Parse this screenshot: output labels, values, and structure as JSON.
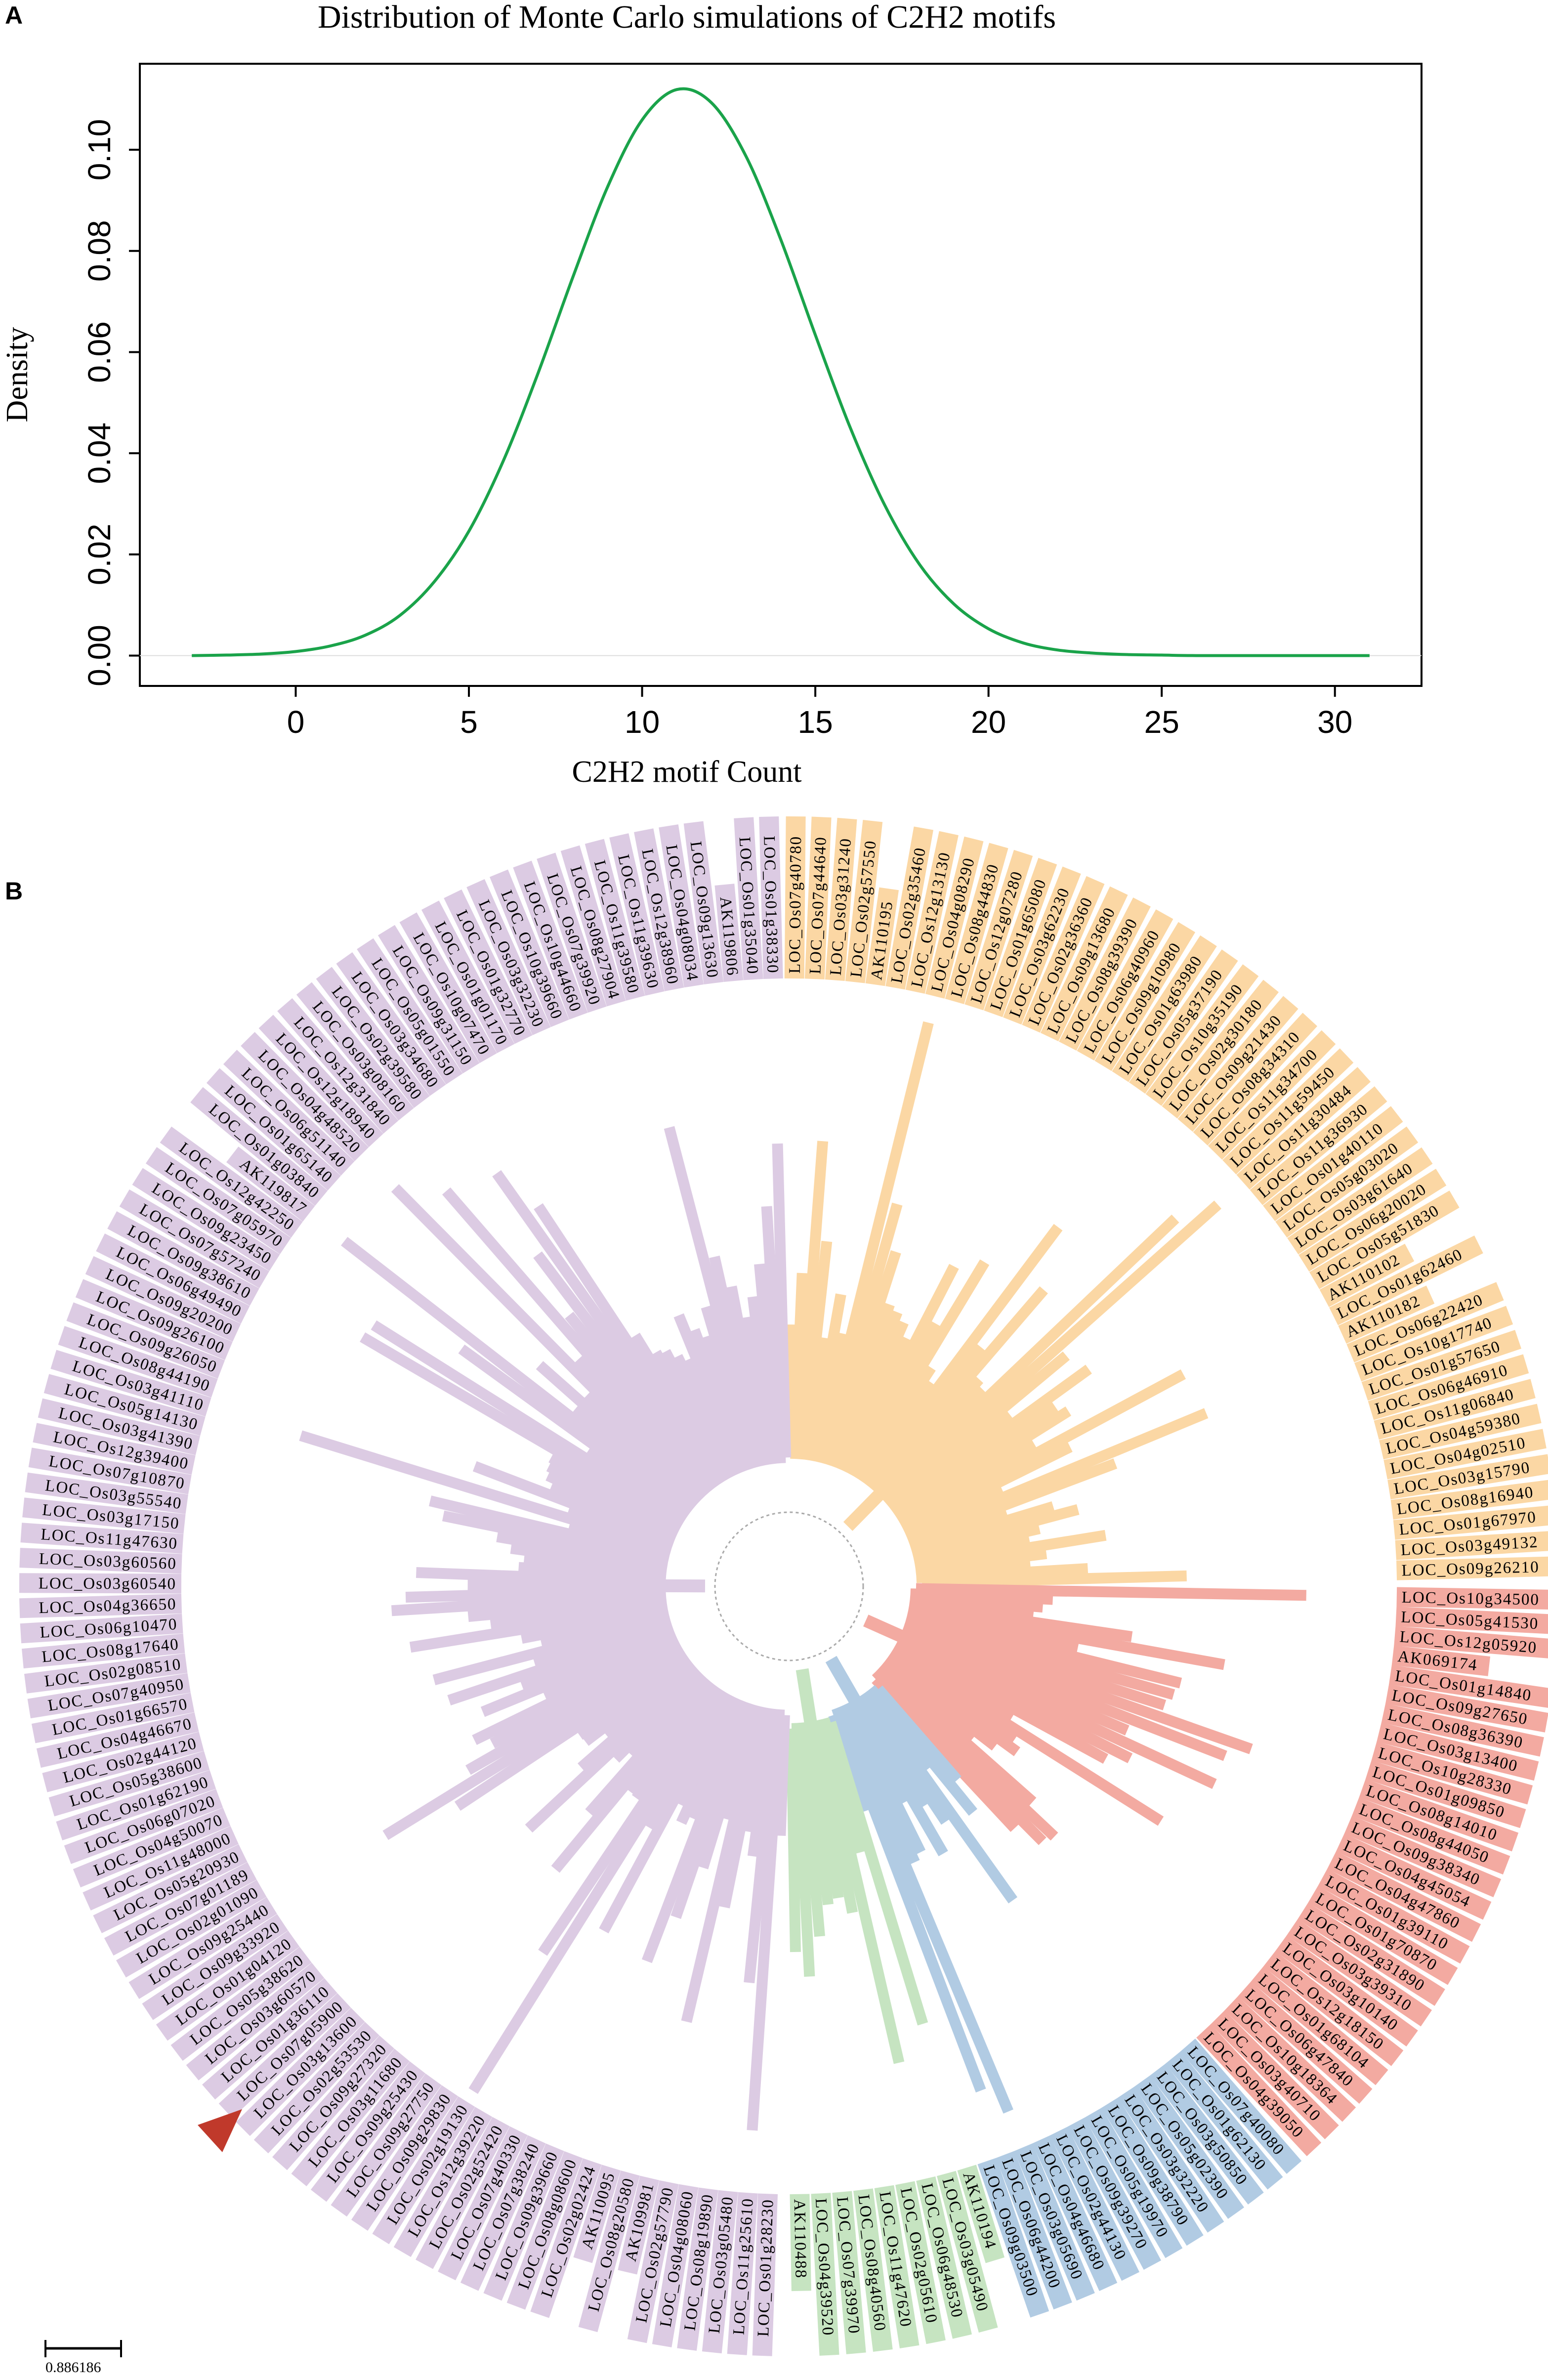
{
  "panels": {
    "a_letter": "A",
    "b_letter": "B"
  },
  "chart_data": {
    "type": "line",
    "title": "Distribution of Monte Carlo simulations of C2H2 motifs",
    "xlabel": "C2H2 motif Count",
    "ylabel": "Density",
    "xlim": [
      -4.5,
      32.5
    ],
    "ylim": [
      -0.006,
      0.117
    ],
    "xticks": [
      "0",
      "5",
      "10",
      "15",
      "20",
      "25",
      "30"
    ],
    "yticks": [
      "0.00",
      "0.02",
      "0.04",
      "0.06",
      "0.08",
      "0.10"
    ],
    "grid": false,
    "color": "#1aa34a",
    "x": [
      -3,
      -2,
      -1,
      0,
      1,
      2,
      3,
      4,
      5,
      6,
      7,
      8,
      9,
      10,
      11,
      12,
      13,
      14,
      15,
      16,
      17,
      18,
      19,
      20,
      21,
      22,
      23,
      24,
      25,
      26,
      28,
      31
    ],
    "y": [
      0.0,
      0.0001,
      0.0003,
      0.0008,
      0.0019,
      0.004,
      0.0079,
      0.0146,
      0.0246,
      0.0386,
      0.0559,
      0.0748,
      0.0926,
      0.1059,
      0.1119,
      0.1093,
      0.0987,
      0.0823,
      0.0634,
      0.0452,
      0.0298,
      0.0181,
      0.0102,
      0.0053,
      0.0025,
      0.0011,
      0.0005,
      0.0002,
      0.0001,
      0.0,
      0.0,
      0.0
    ]
  },
  "tree": {
    "scale_label": "0.886186",
    "clades": [
      {
        "name": "orange",
        "color": "#fbd7a4",
        "leaves": [
          "LOC_Os07g40780",
          "LOC_Os07g44640",
          "LOC_Os03g31240",
          "LOC_Os02g57550",
          "AK110195",
          "LOC_Os02g35460",
          "LOC_Os12g13130",
          "LOC_Os04g08290",
          "LOC_Os08g44830",
          "LOC_Os12g07280",
          "LOC_Os01g65080",
          "LOC_Os03g62230",
          "LOC_Os02g36360",
          "LOC_Os09g13680",
          "LOC_Os08g39390",
          "LOC_Os06g40960",
          "LOC_Os09g10980",
          "LOC_Os01g63980",
          "LOC_Os05g37190",
          "LOC_Os10g35190",
          "LOC_Os02g30180",
          "LOC_Os09g21430",
          "LOC_Os08g34310",
          "LOC_Os11g34700",
          "LOC_Os11g59450",
          "LOC_Os11g30484",
          "LOC_Os11g36930",
          "LOC_Os01g40110",
          "LOC_Os05g03020",
          "LOC_Os03g61640",
          "LOC_Os06g20020",
          "LOC_Os05g51830",
          "AK110102",
          "LOC_Os01g62460",
          "AK110182",
          "LOC_Os06g22420",
          "LOC_Os10g17740",
          "LOC_Os01g57650",
          "LOC_Os06g46910",
          "LOC_Os11g06840",
          "LOC_Os04g59380",
          "LOC_Os04g02510",
          "LOC_Os03g15790",
          "LOC_Os08g16940",
          "LOC_Os01g67970",
          "LOC_Os03g49132",
          "LOC_Os09g26210"
        ]
      },
      {
        "name": "red",
        "color": "#f3aaa1",
        "leaves": [
          "LOC_Os10g34500",
          "LOC_Os05g41530",
          "LOC_Os12g05920",
          "AK069174",
          "LOC_Os01g14840",
          "LOC_Os09g27650",
          "LOC_Os08g36390",
          "LOC_Os03g13400",
          "LOC_Os10g28330",
          "LOC_Os01g09850",
          "LOC_Os08g14010",
          "LOC_Os08g44050",
          "LOC_Os09g38340",
          "LOC_Os04g45054",
          "LOC_Os04g47860",
          "LOC_Os01g39110",
          "LOC_Os01g70870",
          "LOC_Os02g31890",
          "LOC_Os03g39310",
          "LOC_Os03g10140",
          "LOC_Os12g18150",
          "LOC_Os01g68104",
          "LOC_Os06g47840",
          "LOC_Os10g18364",
          "LOC_Os03g40710",
          "LOC_Os04g39050"
        ]
      },
      {
        "name": "blue",
        "color": "#b1cbe3",
        "leaves": [
          "LOC_Os07g40080",
          "LOC_Os01g62130",
          "LOC_Os03g50850",
          "LOC_Os05g02390",
          "LOC_Os03g32220",
          "LOC_Os09g38790",
          "LOC_Os05g19970",
          "LOC_Os09g39270",
          "LOC_Os02g44130",
          "LOC_Os04g46680",
          "LOC_Os03g05690",
          "LOC_Os06g44200",
          "LOC_Os09g03500"
        ]
      },
      {
        "name": "green",
        "color": "#c6e4c1",
        "leaves": [
          "AK110194",
          "LOC_Os03g05490",
          "LOC_Os06g48530",
          "LOC_Os02g05610",
          "LOC_Os11g47620",
          "LOC_Os08g40560",
          "LOC_Os07g39970",
          "LOC_Os04g39520",
          "AK110488"
        ]
      },
      {
        "name": "purple",
        "color": "#dccbe3",
        "leaves": [
          "LOC_Os01g28230",
          "LOC_Os11g25610",
          "LOC_Os03g05480",
          "LOC_Os08g19890",
          "LOC_Os04g08060",
          "LOC_Os02g57790",
          "AK109981",
          "LOC_Os08g20580",
          "AK110095",
          "LOC_Os02g02424",
          "LOC_Os08g08600",
          "LOC_Os09g39660",
          "LOC_Os07g38240",
          "LOC_Os07g40330",
          "LOC_Os02g52420",
          "LOC_Os12g39220",
          "LOC_Os02g19130",
          "LOC_Os09g29830",
          "LOC_Os09g27750",
          "LOC_Os09g25430",
          "LOC_Os03g11680",
          "LOC_Os09g27320",
          "LOC_Os02g53530",
          "LOC_Os03g13600",
          "LOC_Os07g05900",
          "LOC_Os01g36110",
          "LOC_Os03g60570",
          "LOC_Os05g38620",
          "LOC_Os01g04120",
          "LOC_Os09g33920",
          "LOC_Os09g25440",
          "LOC_Os02g01090",
          "LOC_Os07g01189",
          "LOC_Os05g20930",
          "LOC_Os11g48000",
          "LOC_Os04g50070",
          "LOC_Os06g07020",
          "LOC_Os01g62190",
          "LOC_Os05g38600",
          "LOC_Os02g44120",
          "LOC_Os04g46670",
          "LOC_Os01g66570",
          "LOC_Os07g40950",
          "LOC_Os02g08510",
          "LOC_Os08g17640",
          "LOC_Os06g10470",
          "LOC_Os04g36650",
          "LOC_Os03g60540",
          "LOC_Os03g60560",
          "LOC_Os11g47630",
          "LOC_Os03g17150",
          "LOC_Os03g55540",
          "LOC_Os07g10870",
          "LOC_Os12g39400",
          "LOC_Os03g41390",
          "LOC_Os05g14130",
          "LOC_Os03g41110",
          "LOC_Os08g44190",
          "LOC_Os09g26050",
          "LOC_Os09g26100",
          "LOC_Os09g20200",
          "LOC_Os06g49490",
          "LOC_Os09g38610",
          "LOC_Os07g57240",
          "LOC_Os09g23450",
          "LOC_Os07g05970",
          "LOC_Os12g42250",
          "AK119817",
          "LOC_Os01g03840",
          "LOC_Os01g65140",
          "LOC_Os06g51140",
          "LOC_Os04g48520",
          "LOC_Os12g18940",
          "LOC_Os12g31840",
          "LOC_Os03g08160",
          "LOC_Os02g39580",
          "LOC_Os03g34680",
          "LOC_Os05g01550",
          "LOC_Os09g31150",
          "LOC_Os10g07470",
          "LOC_Os01g01170",
          "LOC_Os01g32770",
          "LOC_Os03g32230",
          "LOC_Os10g39660",
          "LOC_Os10g44660",
          "LOC_Os07g39920",
          "LOC_Os08g27904",
          "LOC_Os11g39580",
          "LOC_Os11g39630",
          "LOC_Os12g38960",
          "LOC_Os04g08034",
          "LOC_Os09g13630",
          "AK119806",
          "LOC_Os01g35040",
          "LOC_Os01g38330"
        ]
      }
    ],
    "highlight_marker_color": "#c0392b"
  }
}
